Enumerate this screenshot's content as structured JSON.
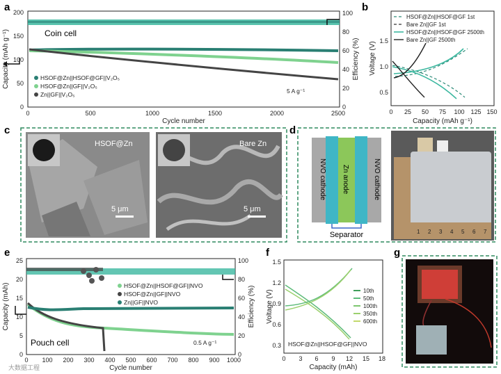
{
  "panels": {
    "a": {
      "label": "a",
      "title": "Coin cell",
      "ylabel": "Capacity (mAh g⁻¹)",
      "ylabel_right": "Efficiency (%)",
      "xlabel": "Cycle number",
      "rate": "5 A g⁻¹",
      "legend": [
        "HSOF@Zn||HSOF@GF||V₂O₅",
        "HSOF@Zn||GF||V₂O₅",
        "Zn||GF||V₂O₅"
      ],
      "xticks": [
        "0",
        "500",
        "1000",
        "1500",
        "2000",
        "2500"
      ],
      "yticks": [
        "0",
        "50",
        "100",
        "150",
        "200"
      ],
      "yticks_right": [
        "0",
        "20",
        "40",
        "60",
        "80",
        "100"
      ]
    },
    "b": {
      "label": "b",
      "ylabel": "Voltage (V)",
      "xlabel": "Capacity (mAh g⁻¹)",
      "legend": [
        "HSOF@Zn||HSOF@GF 1st",
        "Bare Zn||GF 1st",
        "HSOF@Zn||HSOF@GF 2500th",
        "Bare Zn||GF 2500th"
      ],
      "xticks": [
        "0",
        "25",
        "50",
        "75",
        "100",
        "125",
        "150"
      ],
      "yticks": [
        "0.5",
        "1.0",
        "1.5"
      ]
    },
    "c": {
      "label": "c",
      "left_caption": "HSOF@Zn",
      "right_caption": "Bare Zn",
      "scale_left": "5 μm",
      "scale_right": "5 μm"
    },
    "d": {
      "label": "d",
      "left_cathode": "NVO cathode",
      "anode": "Zn anode",
      "right_cathode": "NVO cathode",
      "separator": "Separator",
      "ruler_numbers": [
        "1",
        "2",
        "3",
        "4",
        "5",
        "6",
        "7"
      ]
    },
    "e": {
      "label": "e",
      "title": "Pouch cell",
      "ylabel": "Capacity (mAh)",
      "ylabel_right": "Efficiency (%)",
      "xlabel": "Cycle number",
      "rate": "0.5 A g⁻¹",
      "legend": [
        "HSOF@Zn||HSOF@GF||NVO",
        "HSOF@Zn||GF||NVO",
        "Zn||GF||NVO"
      ],
      "xticks": [
        "0",
        "100",
        "200",
        "300",
        "400",
        "500",
        "600",
        "700",
        "800",
        "900",
        "1000"
      ],
      "yticks": [
        "0",
        "5",
        "10",
        "15",
        "20",
        "25"
      ],
      "yticks_right": [
        "0",
        "20",
        "40",
        "60",
        "80",
        "100"
      ]
    },
    "f": {
      "label": "f",
      "ylabel": "Voltage (V)",
      "xlabel": "Capacity (mAh)",
      "caption": "HSOF@Zn||HSOF@GF||NVO",
      "legend": [
        "10th",
        "50th",
        "100th",
        "350th",
        "600th"
      ],
      "xticks": [
        "0",
        "3",
        "6",
        "9",
        "12",
        "15",
        "18"
      ],
      "yticks": [
        "0.3",
        "0.6",
        "0.9",
        "1.2",
        "1.5"
      ]
    },
    "g": {
      "label": "g"
    }
  },
  "watermark": "大数据工程",
  "colors": {
    "dark_teal": "#2a7f73",
    "teal": "#3cb8a0",
    "light_green": "#7fd28f",
    "gray": "#444444",
    "frame": "#2f8a5f"
  },
  "chart_data": [
    {
      "type": "scatter",
      "panel": "a",
      "title": "Coin cell",
      "xlabel": "Cycle number",
      "ylabel": "Capacity (mAh g⁻¹)",
      "xlim": [
        0,
        2500
      ],
      "ylim": [
        0,
        200
      ],
      "series": [
        {
          "name": "HSOF@Zn||HSOF@GF||V₂O₅",
          "x": [
            0,
            250,
            500,
            1000,
            1500,
            2000,
            2500
          ],
          "y": [
            120,
            121,
            121,
            120,
            119,
            118,
            117
          ]
        },
        {
          "name": "HSOF@Zn||GF||V₂O₅",
          "x": [
            0,
            250,
            500,
            1000,
            1500,
            2000,
            2500
          ],
          "y": [
            118,
            117,
            115,
            110,
            104,
            98,
            92
          ]
        },
        {
          "name": "Zn||GF||V₂O₅",
          "x": [
            0,
            250,
            500,
            1000,
            1500,
            2000,
            2500
          ],
          "y": [
            120,
            115,
            106,
            92,
            80,
            68,
            57
          ]
        }
      ],
      "efficiency_percent": 100
    },
    {
      "type": "line",
      "panel": "b",
      "xlabel": "Capacity (mAh g⁻¹)",
      "ylabel": "Voltage (V)",
      "xlim": [
        0,
        150
      ],
      "ylim": [
        0.3,
        1.7
      ]
    },
    {
      "type": "scatter",
      "panel": "e",
      "title": "Pouch cell",
      "xlabel": "Cycle number",
      "ylabel": "Capacity (mAh)",
      "xlim": [
        0,
        1000
      ],
      "ylim": [
        0,
        25
      ],
      "series": [
        {
          "name": "HSOF@Zn||HSOF@GF||NVO",
          "x": [
            0,
            100,
            200,
            400,
            600,
            800,
            1000
          ],
          "y": [
            12,
            9,
            8,
            7,
            6.3,
            5.8,
            5.5
          ]
        },
        {
          "name": "HSOF@Zn||GF||NVO",
          "x": [
            0,
            100,
            200,
            300,
            370
          ],
          "y": [
            12.5,
            8,
            7,
            6.5,
            6
          ]
        },
        {
          "name": "Zn||GF||NVO",
          "x": [
            0,
            100,
            200,
            400,
            600,
            800,
            1000
          ],
          "y": [
            11,
            11.5,
            12,
            12,
            12,
            12,
            12
          ]
        }
      ]
    },
    {
      "type": "line",
      "panel": "f",
      "xlabel": "Capacity (mAh)",
      "ylabel": "Voltage (V)",
      "xlim": [
        0,
        18
      ],
      "ylim": [
        0.2,
        1.5
      ]
    }
  ]
}
